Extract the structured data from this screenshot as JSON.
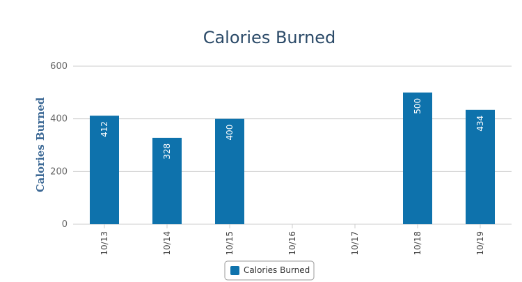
{
  "chart_data": {
    "type": "bar",
    "title": "Calories Burned",
    "ylabel": "Calories Burned",
    "xlabel": "",
    "categories": [
      "10/13",
      "10/14",
      "10/15",
      "10/16",
      "10/17",
      "10/18",
      "10/19"
    ],
    "series": [
      {
        "name": "Calories Burned",
        "values": [
          412,
          328,
          400,
          null,
          null,
          500,
          434
        ],
        "color": "#0e72ac"
      }
    ],
    "ylim": [
      0,
      600
    ],
    "yticks": [
      0,
      200,
      400,
      600
    ],
    "grid": true,
    "legend_position": "bottom-center"
  }
}
